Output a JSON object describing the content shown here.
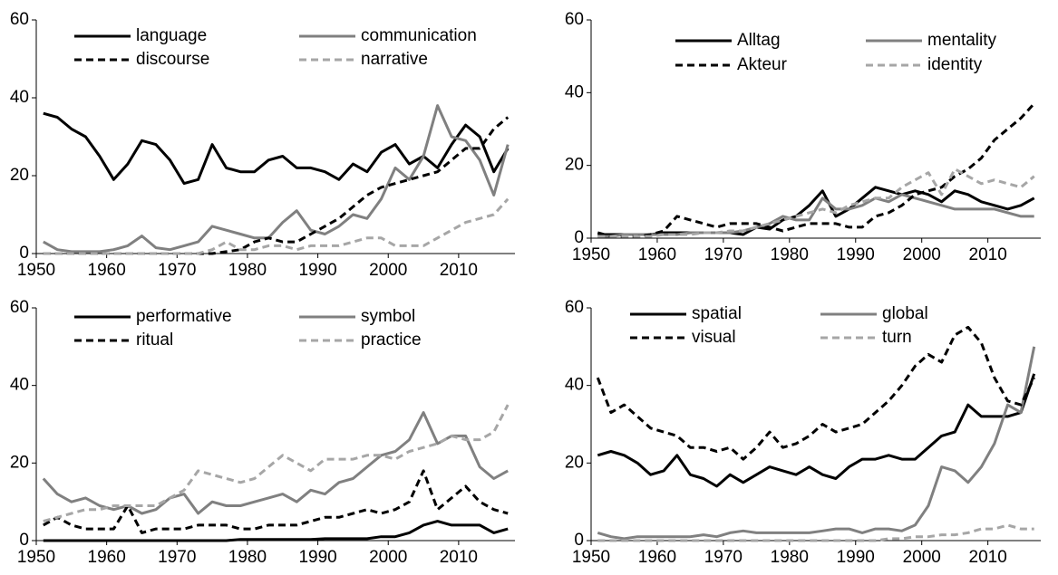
{
  "chart_data": [
    {
      "type": "line",
      "xlim": [
        1950,
        2018
      ],
      "ylim": [
        0,
        60
      ],
      "xticks": [
        1950,
        1960,
        1970,
        1980,
        1990,
        2000,
        2010
      ],
      "yticks": [
        0,
        20,
        40,
        60
      ],
      "x": [
        1951,
        1953,
        1955,
        1957,
        1959,
        1961,
        1963,
        1965,
        1967,
        1969,
        1971,
        1973,
        1975,
        1977,
        1979,
        1981,
        1983,
        1985,
        1987,
        1989,
        1991,
        1993,
        1995,
        1997,
        1999,
        2001,
        2003,
        2005,
        2007,
        2009,
        2011,
        2013,
        2015,
        2017
      ],
      "series": [
        {
          "name": "language",
          "color": "#000000",
          "dash": false,
          "values": [
            36,
            35,
            32,
            30,
            25,
            19,
            23,
            29,
            28,
            24,
            18,
            19,
            28,
            22,
            21,
            21,
            24,
            25,
            22,
            22,
            21,
            19,
            23,
            21,
            26,
            28,
            23,
            25,
            22,
            28,
            33,
            30,
            21,
            27
          ]
        },
        {
          "name": "communication",
          "color": "#808080",
          "dash": false,
          "values": [
            3,
            1,
            0.5,
            0.5,
            0.5,
            1,
            2,
            4.5,
            1.5,
            1,
            2,
            3,
            7,
            6,
            5,
            4,
            4,
            8,
            11,
            6,
            5,
            7,
            10,
            9,
            14,
            22,
            19,
            25,
            38,
            30,
            29,
            24,
            15,
            28
          ]
        },
        {
          "name": "discourse",
          "color": "#000000",
          "dash": true,
          "values": [
            0,
            0,
            0,
            0,
            0,
            0,
            0,
            0,
            0,
            0,
            0,
            0,
            0,
            0.5,
            1,
            3,
            4,
            3,
            3,
            5,
            7,
            9,
            12,
            15,
            17,
            18,
            19,
            20,
            21,
            24,
            27,
            27,
            32,
            35
          ]
        },
        {
          "name": "narrative",
          "color": "#a6a6a6",
          "dash": true,
          "values": [
            0,
            0,
            0,
            0,
            0,
            0,
            0,
            0,
            0,
            0,
            0,
            0,
            1,
            3,
            1,
            1,
            2,
            2,
            1,
            2,
            2,
            2,
            3,
            4,
            4,
            2,
            2,
            2,
            4,
            6,
            8,
            9,
            10,
            14
          ]
        }
      ]
    },
    {
      "type": "line",
      "xlim": [
        1950,
        2018
      ],
      "ylim": [
        0,
        60
      ],
      "xticks": [
        1950,
        1960,
        1970,
        1980,
        1990,
        2000,
        2010
      ],
      "yticks": [
        0,
        20,
        40,
        60
      ],
      "x": [
        1951,
        1953,
        1955,
        1957,
        1959,
        1961,
        1963,
        1965,
        1967,
        1969,
        1971,
        1973,
        1975,
        1977,
        1979,
        1981,
        1983,
        1985,
        1987,
        1989,
        1991,
        1993,
        1995,
        1997,
        1999,
        2001,
        2003,
        2005,
        2007,
        2009,
        2011,
        2013,
        2015,
        2017
      ],
      "series": [
        {
          "name": "Alltag",
          "color": "#000000",
          "dash": false,
          "values": [
            1,
            1,
            1,
            1,
            1,
            1.5,
            1.5,
            1.5,
            1.5,
            1.5,
            1.5,
            1,
            3,
            2.5,
            5,
            6,
            9,
            13,
            6,
            8,
            11,
            14,
            13,
            12,
            13,
            12,
            10,
            13,
            12,
            10,
            9,
            8,
            9,
            11
          ]
        },
        {
          "name": "mentality",
          "color": "#808080",
          "dash": false,
          "values": [
            0.5,
            0.5,
            1,
            1,
            1,
            1,
            1,
            1.5,
            1.5,
            1.5,
            1.5,
            2,
            3,
            4,
            6,
            5,
            5,
            11,
            8,
            8,
            9,
            11,
            10,
            12,
            11,
            10,
            9,
            8,
            8,
            8,
            8,
            7,
            6,
            6
          ]
        },
        {
          "name": "Akteur",
          "color": "#000000",
          "dash": true,
          "values": [
            1.5,
            0.5,
            0.5,
            0.5,
            1,
            2,
            6,
            5,
            4,
            3,
            4,
            4,
            4,
            3,
            2,
            3,
            4,
            4,
            4,
            3,
            3,
            6,
            7,
            9,
            12,
            13,
            14,
            17,
            19,
            22,
            27,
            30,
            33,
            37
          ]
        },
        {
          "name": "identity",
          "color": "#a6a6a6",
          "dash": true,
          "values": [
            0.5,
            0.5,
            0.5,
            0.5,
            0.5,
            1,
            1,
            1,
            1.5,
            1.5,
            2,
            2,
            3,
            4,
            5,
            6,
            7,
            8,
            7,
            9,
            10,
            11,
            11,
            14,
            16,
            18,
            12,
            19,
            17,
            15,
            16,
            15,
            14,
            17
          ]
        }
      ]
    },
    {
      "type": "line",
      "xlim": [
        1950,
        2018
      ],
      "ylim": [
        0,
        60
      ],
      "xticks": [
        1950,
        1960,
        1970,
        1980,
        1990,
        2000,
        2010
      ],
      "yticks": [
        0,
        20,
        40,
        60
      ],
      "x": [
        1951,
        1953,
        1955,
        1957,
        1959,
        1961,
        1963,
        1965,
        1967,
        1969,
        1971,
        1973,
        1975,
        1977,
        1979,
        1981,
        1983,
        1985,
        1987,
        1989,
        1991,
        1993,
        1995,
        1997,
        1999,
        2001,
        2003,
        2005,
        2007,
        2009,
        2011,
        2013,
        2015,
        2017
      ],
      "series": [
        {
          "name": "performative",
          "color": "#000000",
          "dash": false,
          "values": [
            0,
            0,
            0,
            0,
            0,
            0,
            0,
            0,
            0,
            0,
            0,
            0,
            0,
            0,
            0.3,
            0.3,
            0.3,
            0.3,
            0.3,
            0.3,
            0.5,
            0.5,
            0.5,
            0.5,
            1,
            1,
            2,
            4,
            5,
            4,
            4,
            4,
            2,
            3
          ]
        },
        {
          "name": "symbol",
          "color": "#808080",
          "dash": false,
          "values": [
            16,
            12,
            10,
            11,
            9,
            8,
            9,
            7,
            8,
            11,
            12,
            7,
            10,
            9,
            9,
            10,
            11,
            12,
            10,
            13,
            12,
            15,
            16,
            19,
            22,
            23,
            26,
            33,
            25,
            27,
            27,
            19,
            16,
            18
          ]
        },
        {
          "name": "ritual",
          "color": "#000000",
          "dash": true,
          "values": [
            4,
            6,
            4,
            3,
            3,
            3,
            9,
            2,
            3,
            3,
            3,
            4,
            4,
            4,
            3,
            3,
            4,
            4,
            4,
            5,
            6,
            6,
            7,
            8,
            7,
            8,
            10,
            18,
            8,
            11,
            14,
            10,
            8,
            7
          ]
        },
        {
          "name": "practice",
          "color": "#a6a6a6",
          "dash": true,
          "values": [
            5,
            6,
            7,
            8,
            8,
            9,
            9,
            9,
            9,
            11,
            13,
            18,
            17,
            16,
            15,
            16,
            19,
            22,
            20,
            18,
            21,
            21,
            21,
            22,
            22,
            21,
            23,
            24,
            25,
            27,
            26,
            26,
            28,
            35
          ]
        }
      ]
    },
    {
      "type": "line",
      "xlim": [
        1950,
        2018
      ],
      "ylim": [
        0,
        60
      ],
      "xticks": [
        1950,
        1960,
        1970,
        1980,
        1990,
        2000,
        2010
      ],
      "yticks": [
        0,
        20,
        40,
        60
      ],
      "x": [
        1951,
        1953,
        1955,
        1957,
        1959,
        1961,
        1963,
        1965,
        1967,
        1969,
        1971,
        1973,
        1975,
        1977,
        1979,
        1981,
        1983,
        1985,
        1987,
        1989,
        1991,
        1993,
        1995,
        1997,
        1999,
        2001,
        2003,
        2005,
        2007,
        2009,
        2011,
        2013,
        2015,
        2017
      ],
      "series": [
        {
          "name": "spatial",
          "color": "#000000",
          "dash": false,
          "values": [
            22,
            23,
            22,
            20,
            17,
            18,
            22,
            17,
            16,
            14,
            17,
            15,
            17,
            19,
            18,
            17,
            19,
            17,
            16,
            19,
            21,
            21,
            22,
            21,
            21,
            24,
            27,
            28,
            35,
            32,
            32,
            32,
            33,
            43
          ]
        },
        {
          "name": "global",
          "color": "#808080",
          "dash": false,
          "values": [
            2,
            1,
            0.5,
            1,
            1,
            1,
            1,
            1,
            1.5,
            1,
            2,
            2.5,
            2,
            2,
            2,
            2,
            2,
            2.5,
            3,
            3,
            2,
            3,
            3,
            2.5,
            4,
            9,
            19,
            18,
            15,
            19,
            25,
            35,
            33,
            50
          ]
        },
        {
          "name": "visual",
          "color": "#000000",
          "dash": true,
          "values": [
            42,
            33,
            35,
            32,
            29,
            28,
            27,
            24,
            24,
            23,
            24,
            21,
            24,
            28,
            24,
            25,
            27,
            30,
            28,
            29,
            30,
            33,
            36,
            40,
            45,
            48,
            46,
            53,
            55,
            51,
            42,
            36,
            35,
            42
          ]
        },
        {
          "name": "turn",
          "color": "#a6a6a6",
          "dash": true,
          "values": [
            0,
            0,
            0,
            0,
            0,
            0,
            0,
            0,
            0,
            0,
            0,
            0,
            0,
            0,
            0,
            0,
            0,
            0,
            0,
            0,
            0,
            0,
            0.5,
            0.5,
            1,
            1,
            1.5,
            1.5,
            2,
            3,
            3,
            4,
            3,
            3
          ]
        }
      ]
    }
  ]
}
